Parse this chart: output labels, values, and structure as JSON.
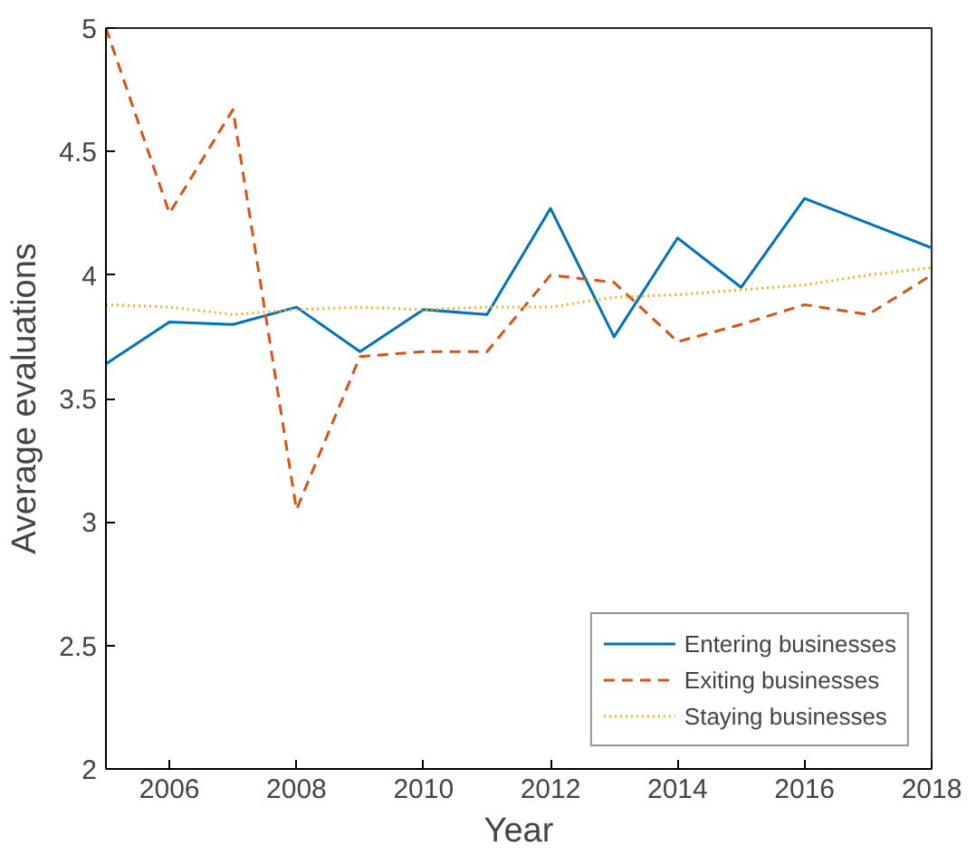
{
  "chart_data": {
    "type": "line",
    "xlabel": "Year",
    "ylabel": "Average evaluations",
    "x": [
      2005,
      2006,
      2007,
      2008,
      2009,
      2010,
      2011,
      2012,
      2013,
      2014,
      2015,
      2016,
      2017,
      2018
    ],
    "series": [
      {
        "name": "Entering businesses",
        "color": "#0072bd",
        "line_style": "solid",
        "values": [
          3.64,
          3.81,
          3.8,
          3.87,
          3.69,
          3.86,
          3.84,
          4.27,
          3.75,
          4.15,
          3.95,
          4.31,
          4.21,
          4.11
        ]
      },
      {
        "name": "Exiting businesses",
        "color": "#d95319",
        "line_style": "dashed",
        "values": [
          5.0,
          4.25,
          4.67,
          3.05,
          3.67,
          3.69,
          3.69,
          4.0,
          3.97,
          3.73,
          3.8,
          3.88,
          3.84,
          4.0
        ]
      },
      {
        "name": "Staying businesses",
        "color": "#edb120",
        "line_style": "dotted",
        "values": [
          3.88,
          3.87,
          3.84,
          3.86,
          3.87,
          3.86,
          3.87,
          3.87,
          3.91,
          3.92,
          3.94,
          3.96,
          4.0,
          4.03
        ]
      }
    ],
    "xlim": [
      2005,
      2018
    ],
    "xticks": [
      2006,
      2008,
      2010,
      2012,
      2014,
      2016,
      2018
    ],
    "ylim": [
      2,
      5
    ],
    "yticks": [
      2,
      2.5,
      3,
      3.5,
      4,
      4.5,
      5
    ],
    "grid": false,
    "legend": "bottom right",
    "marker": "none"
  }
}
